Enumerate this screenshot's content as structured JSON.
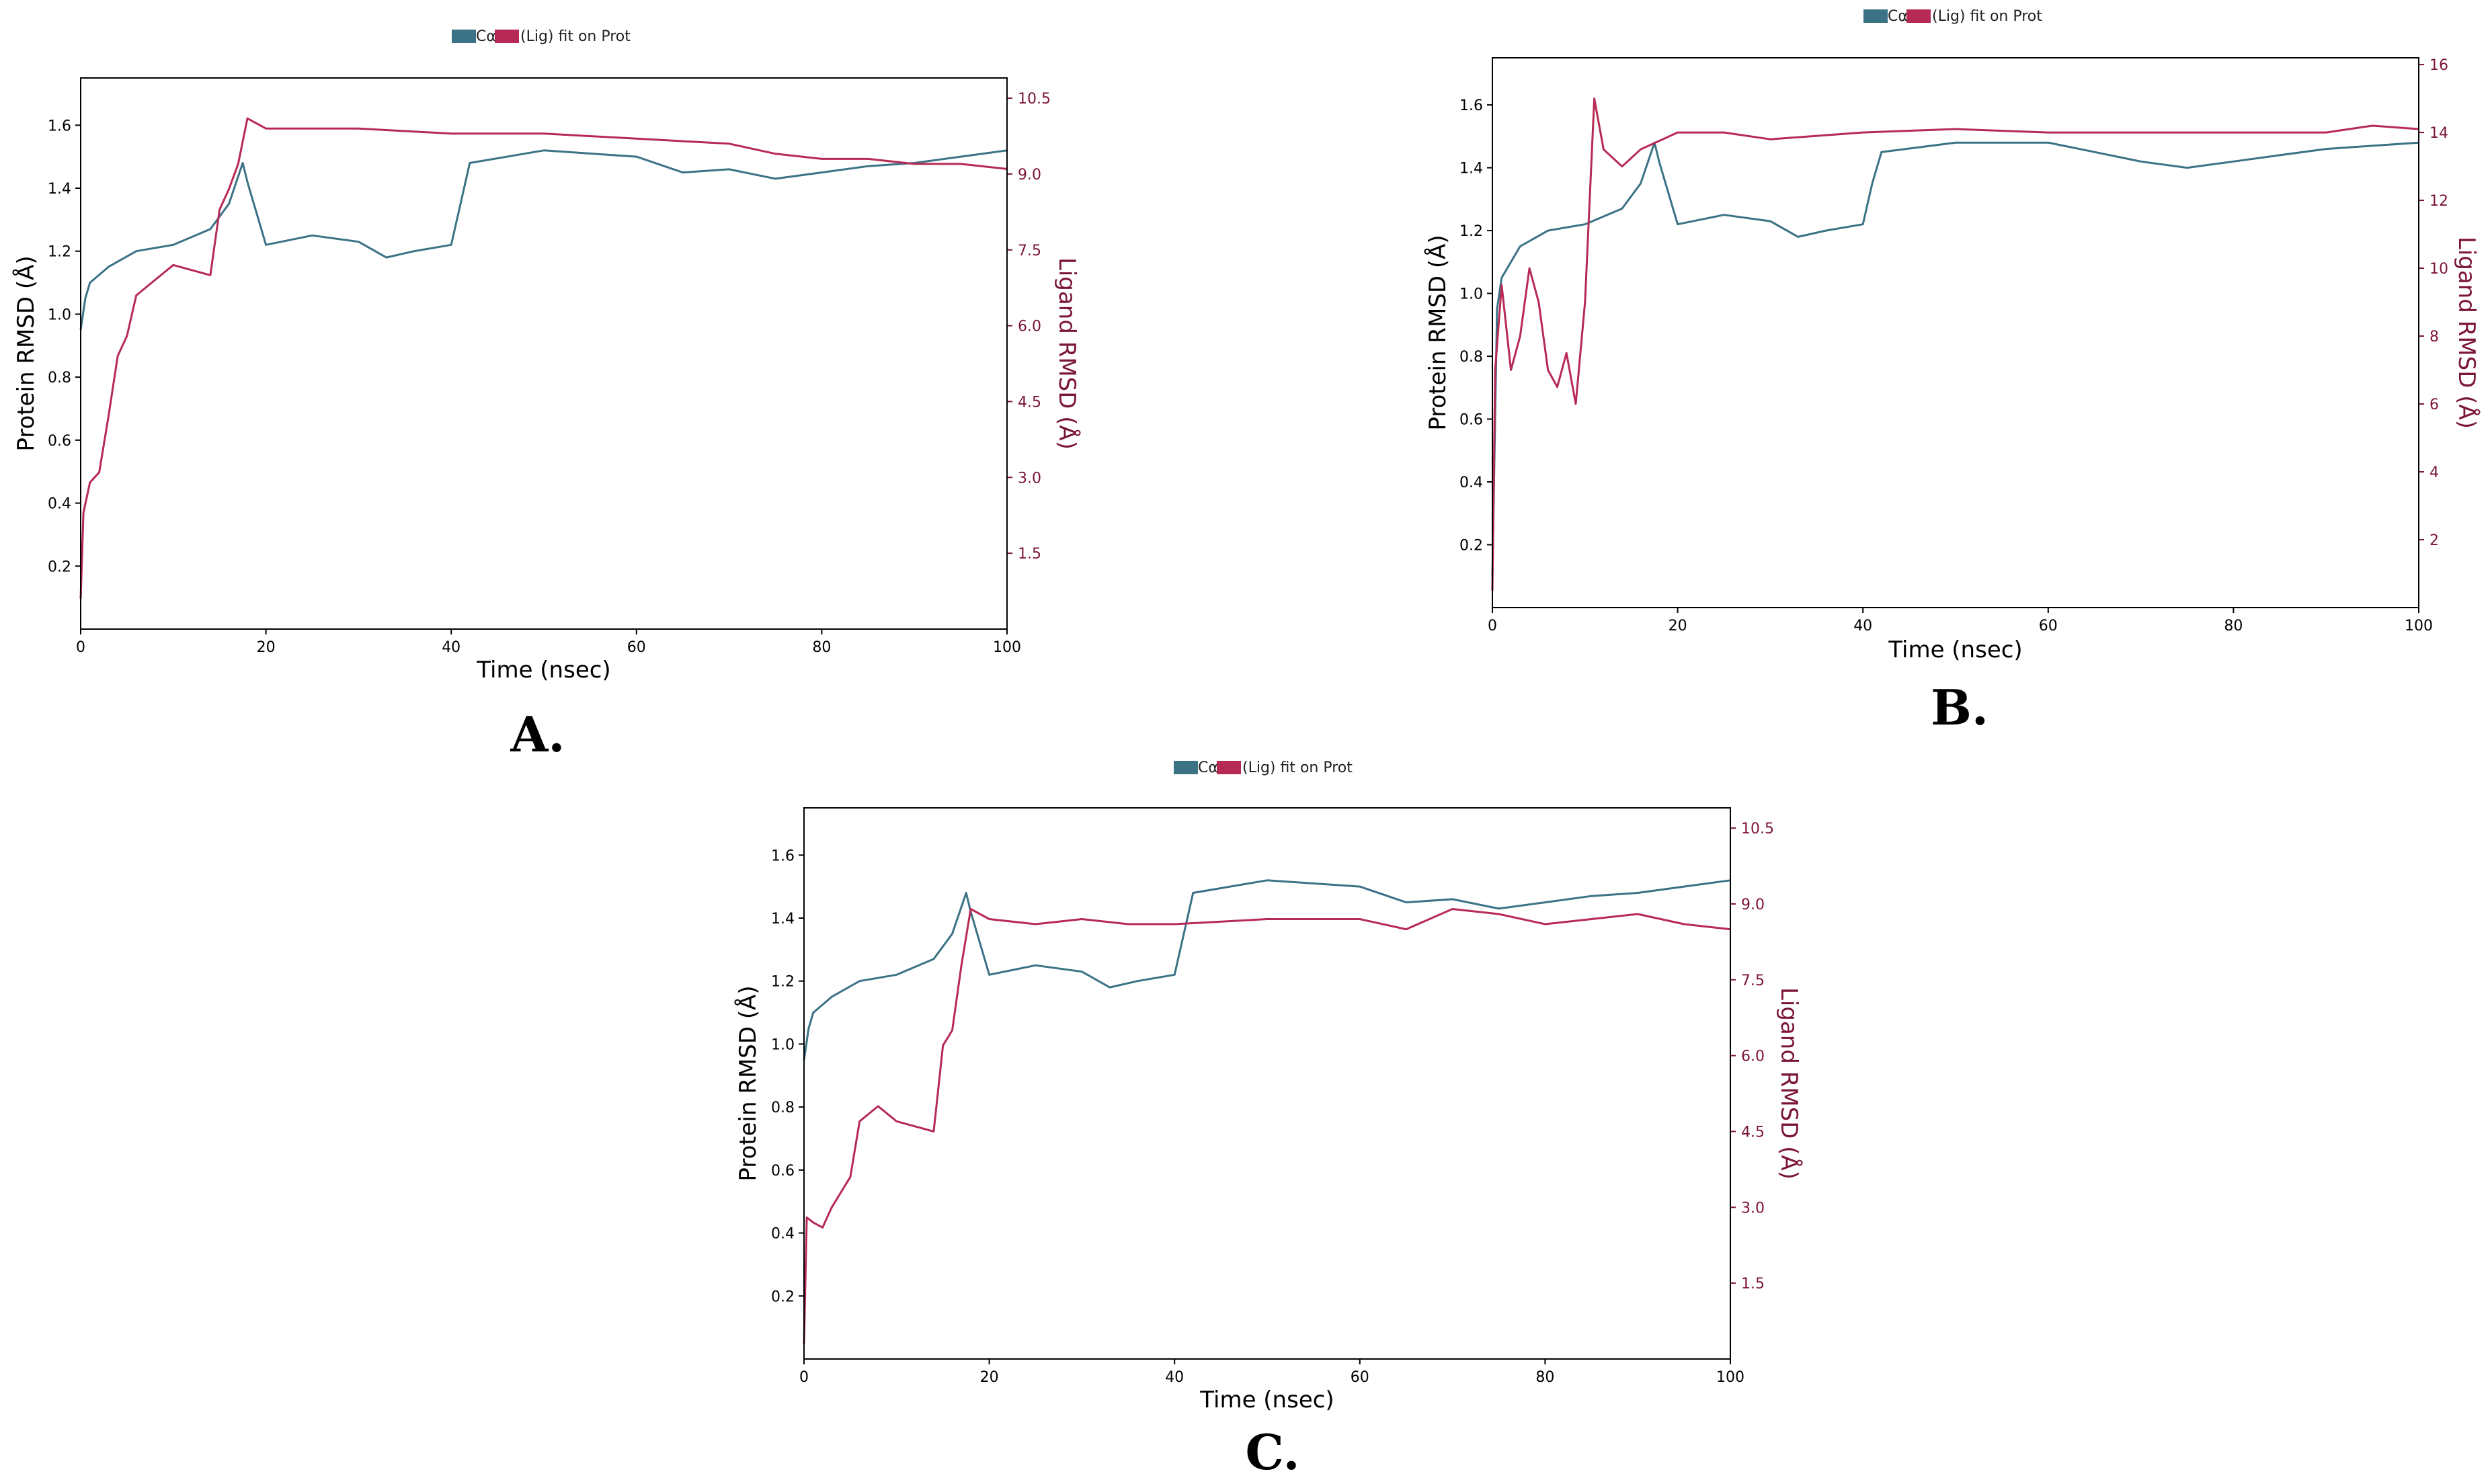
{
  "colors": {
    "protein": "#3b7286",
    "ligand": "#b72a55",
    "ligand_axis": "#7b1535",
    "axis": "#000000"
  },
  "chart_data": [
    {
      "type": "line",
      "label": "A.",
      "legend": [
        "Cα",
        "(Lig) fit on Prot"
      ],
      "xlabel": "Time (nsec)",
      "ylabel": "Protein RMSD (Å)",
      "y2label": "Ligand RMSD (Å)",
      "xlim": [
        0,
        100
      ],
      "ylim": [
        0,
        1.75
      ],
      "y2lim": [
        0,
        10.9
      ],
      "xticks": [
        0,
        20,
        40,
        60,
        80,
        100
      ],
      "yticks": [
        0.2,
        0.4,
        0.6,
        0.8,
        1.0,
        1.2,
        1.4,
        1.6
      ],
      "y2ticks": [
        1.5,
        3.0,
        4.5,
        6.0,
        7.5,
        9.0,
        10.5
      ],
      "series": [
        {
          "name": "Cα",
          "axis": "left",
          "x": [
            0,
            0.5,
            1,
            3,
            6,
            10,
            14,
            16,
            17.5,
            18,
            20,
            25,
            30,
            33,
            36,
            40,
            41,
            42,
            50,
            60,
            65,
            70,
            75,
            80,
            85,
            90,
            95,
            100
          ],
          "y": [
            0.95,
            1.05,
            1.1,
            1.15,
            1.2,
            1.22,
            1.27,
            1.35,
            1.48,
            1.42,
            1.22,
            1.25,
            1.23,
            1.18,
            1.2,
            1.22,
            1.35,
            1.48,
            1.52,
            1.5,
            1.45,
            1.46,
            1.43,
            1.45,
            1.47,
            1.48,
            1.5,
            1.52
          ]
        },
        {
          "name": "(Lig) fit on Prot",
          "axis": "right",
          "x": [
            0,
            0.3,
            1,
            2,
            3,
            4,
            5,
            6,
            8,
            10,
            12,
            14,
            15,
            16,
            17,
            18,
            20,
            30,
            40,
            50,
            60,
            70,
            75,
            80,
            85,
            90,
            95,
            100
          ],
          "y": [
            0.6,
            2.3,
            2.9,
            3.1,
            4.2,
            5.4,
            5.8,
            6.6,
            6.9,
            7.2,
            7.1,
            7.0,
            8.3,
            8.7,
            9.2,
            10.1,
            9.9,
            9.9,
            9.8,
            9.8,
            9.7,
            9.6,
            9.4,
            9.3,
            9.3,
            9.2,
            9.2,
            9.1
          ]
        }
      ]
    },
    {
      "type": "line",
      "label": "B.",
      "legend": [
        "Cα",
        "(Lig) fit on Prot"
      ],
      "xlabel": "Time (nsec)",
      "ylabel": "Protein RMSD (Å)",
      "y2label": "Ligand RMSD (Å)",
      "xlim": [
        0,
        100
      ],
      "ylim": [
        0,
        1.75
      ],
      "y2lim": [
        0,
        16.2
      ],
      "xticks": [
        0,
        20,
        40,
        60,
        80,
        100
      ],
      "yticks": [
        0.2,
        0.4,
        0.6,
        0.8,
        1.0,
        1.2,
        1.4,
        1.6
      ],
      "y2ticks": [
        2,
        4,
        6,
        8,
        10,
        12,
        14,
        16
      ],
      "series": [
        {
          "name": "Cα",
          "axis": "left",
          "x": [
            0,
            0.5,
            1,
            3,
            6,
            10,
            14,
            16,
            17.5,
            18,
            20,
            25,
            30,
            33,
            36,
            40,
            41,
            42,
            50,
            60,
            65,
            70,
            75,
            80,
            85,
            90,
            95,
            100
          ],
          "y": [
            0.1,
            0.95,
            1.05,
            1.15,
            1.2,
            1.22,
            1.27,
            1.35,
            1.48,
            1.42,
            1.22,
            1.25,
            1.23,
            1.18,
            1.2,
            1.22,
            1.35,
            1.45,
            1.48,
            1.48,
            1.45,
            1.42,
            1.4,
            1.42,
            1.44,
            1.46,
            1.47,
            1.48
          ]
        },
        {
          "name": "(Lig) fit on Prot",
          "axis": "right",
          "x": [
            0,
            0.3,
            1,
            2,
            3,
            4,
            5,
            6,
            7,
            8,
            9,
            10,
            11,
            12,
            14,
            16,
            20,
            25,
            30,
            40,
            50,
            60,
            70,
            80,
            90,
            95,
            100
          ],
          "y": [
            0.5,
            7.0,
            9.5,
            7.0,
            8.0,
            10.0,
            9.0,
            7.0,
            6.5,
            7.5,
            6.0,
            9.0,
            15.0,
            13.5,
            13.0,
            13.5,
            14.0,
            14.0,
            13.8,
            14.0,
            14.1,
            14.0,
            14.0,
            14.0,
            14.0,
            14.2,
            14.1
          ]
        }
      ]
    },
    {
      "type": "line",
      "label": "C.",
      "legend": [
        "Cα",
        "(Lig) fit on Prot"
      ],
      "xlabel": "Time (nsec)",
      "ylabel": "Protein RMSD (Å)",
      "y2label": "Ligand RMSD (Å)",
      "xlim": [
        0,
        100
      ],
      "ylim": [
        0,
        1.75
      ],
      "y2lim": [
        0,
        10.9
      ],
      "xticks": [
        0,
        20,
        40,
        60,
        80,
        100
      ],
      "yticks": [
        0.2,
        0.4,
        0.6,
        0.8,
        1.0,
        1.2,
        1.4,
        1.6
      ],
      "y2ticks": [
        1.5,
        3.0,
        4.5,
        6.0,
        7.5,
        9.0,
        10.5
      ],
      "series": [
        {
          "name": "Cα",
          "axis": "left",
          "x": [
            0,
            0.5,
            1,
            3,
            6,
            10,
            14,
            16,
            17.5,
            18,
            20,
            25,
            30,
            33,
            36,
            40,
            41,
            42,
            50,
            60,
            65,
            70,
            75,
            80,
            85,
            90,
            95,
            100
          ],
          "y": [
            0.95,
            1.05,
            1.1,
            1.15,
            1.2,
            1.22,
            1.27,
            1.35,
            1.48,
            1.42,
            1.22,
            1.25,
            1.23,
            1.18,
            1.2,
            1.22,
            1.35,
            1.48,
            1.52,
            1.5,
            1.45,
            1.46,
            1.43,
            1.45,
            1.47,
            1.48,
            1.5,
            1.52
          ]
        },
        {
          "name": "(Lig) fit on Prot",
          "axis": "right",
          "x": [
            0,
            0.3,
            1,
            2,
            3,
            5,
            6,
            8,
            10,
            12,
            14,
            15,
            16,
            17,
            18,
            20,
            25,
            30,
            35,
            40,
            50,
            60,
            65,
            70,
            75,
            80,
            85,
            90,
            95,
            100
          ],
          "y": [
            0.3,
            2.8,
            2.7,
            2.6,
            3.0,
            3.6,
            4.7,
            5.0,
            4.7,
            4.6,
            4.5,
            6.2,
            6.5,
            7.8,
            8.9,
            8.7,
            8.6,
            8.7,
            8.6,
            8.6,
            8.7,
            8.7,
            8.5,
            8.9,
            8.8,
            8.6,
            8.7,
            8.8,
            8.6,
            8.5
          ]
        }
      ]
    }
  ]
}
